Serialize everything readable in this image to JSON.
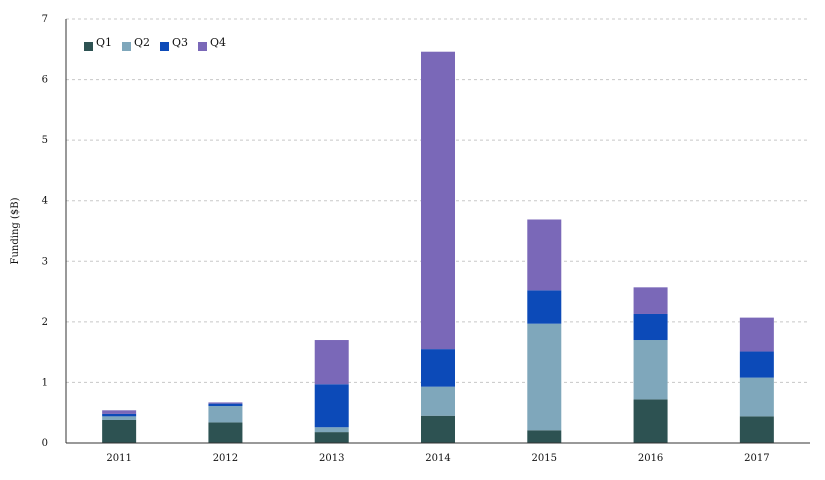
{
  "chart_data": {
    "type": "bar",
    "stacked": true,
    "categories": [
      "2011",
      "2012",
      "2013",
      "2014",
      "2015",
      "2016",
      "2017"
    ],
    "series": [
      {
        "name": "Q1",
        "color": "#2d5252",
        "values": [
          0.38,
          0.34,
          0.18,
          0.45,
          0.21,
          0.72,
          0.44
        ]
      },
      {
        "name": "Q2",
        "color": "#7fa7bb",
        "values": [
          0.06,
          0.27,
          0.08,
          0.48,
          1.76,
          0.98,
          0.64
        ]
      },
      {
        "name": "Q3",
        "color": "#0c4ab8",
        "values": [
          0.04,
          0.04,
          0.71,
          0.62,
          0.55,
          0.43,
          0.43
        ]
      },
      {
        "name": "Q4",
        "color": "#7a68b8",
        "values": [
          0.06,
          0.02,
          0.73,
          4.91,
          1.17,
          0.44,
          0.56
        ]
      }
    ],
    "title": "",
    "xlabel": "",
    "ylabel": "Funding ($B)",
    "ylim": [
      0,
      7
    ],
    "yticks": [
      0,
      1,
      2,
      3,
      4,
      5,
      6,
      7
    ],
    "grid": true,
    "legend": "top-left"
  }
}
